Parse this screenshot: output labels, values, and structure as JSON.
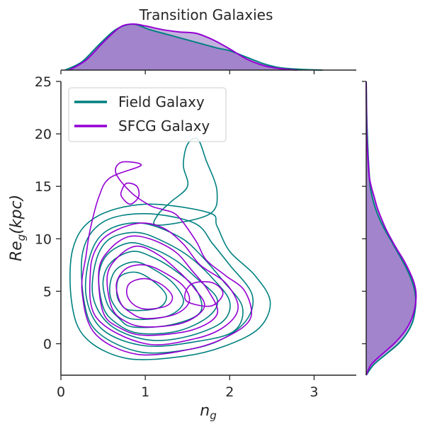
{
  "chart_data": {
    "type": "kde-joint",
    "title": "Transition Galaxies",
    "xlabel": "n",
    "xlabel_sub": "g",
    "ylabel": "Re",
    "ylabel_sub": "g",
    "ylabel_suffix": "(kpc)",
    "xlim": [
      0,
      3.5
    ],
    "ylim": [
      -3,
      25
    ],
    "xticks": [
      0,
      1,
      2,
      3
    ],
    "yticks": [
      0,
      5,
      10,
      15,
      20,
      25
    ],
    "grid": false,
    "legend_position": "upper-left",
    "series": [
      {
        "name": "Field Galaxy",
        "color": "#008080",
        "fill_color": "#7a4fb5",
        "contours": [
          [
            [
              0.78,
              -1.4
            ],
            [
              1.45,
              -1.2
            ],
            [
              1.95,
              -0.2
            ],
            [
              2.35,
              1.5
            ],
            [
              2.48,
              4.0
            ],
            [
              2.3,
              6.5
            ],
            [
              2.0,
              8.8
            ],
            [
              1.85,
              11.2
            ],
            [
              1.75,
              12.5
            ],
            [
              1.0,
              13.3
            ],
            [
              0.4,
              12.0
            ],
            [
              0.14,
              9.0
            ],
            [
              0.13,
              3.8
            ],
            [
              0.3,
              0.5
            ]
          ],
          [
            [
              0.95,
              -0.8
            ],
            [
              1.55,
              -0.5
            ],
            [
              1.95,
              0.6
            ],
            [
              2.22,
              2.5
            ],
            [
              2.26,
              4.8
            ],
            [
              2.0,
              7.5
            ],
            [
              1.8,
              9.5
            ],
            [
              1.58,
              11.5
            ],
            [
              1.0,
              12.4
            ],
            [
              0.5,
              11.6
            ],
            [
              0.26,
              8.8
            ],
            [
              0.28,
              3.8
            ],
            [
              0.45,
              1.0
            ]
          ],
          [
            [
              1.0,
              -0.2
            ],
            [
              1.6,
              0.2
            ],
            [
              2.05,
              1.2
            ],
            [
              2.15,
              3.5
            ],
            [
              1.92,
              6.0
            ],
            [
              1.65,
              8.5
            ],
            [
              1.4,
              10.2
            ],
            [
              0.95,
              11.5
            ],
            [
              0.55,
              10.8
            ],
            [
              0.35,
              8.5
            ],
            [
              0.3,
              4.5
            ],
            [
              0.5,
              1.3
            ]
          ],
          [
            [
              1.0,
              0.4
            ],
            [
              1.45,
              0.6
            ],
            [
              1.9,
              2.0
            ],
            [
              2.0,
              4.0
            ],
            [
              1.8,
              6.2
            ],
            [
              1.52,
              8.3
            ],
            [
              1.2,
              9.8
            ],
            [
              0.9,
              10.6
            ],
            [
              0.58,
              10.0
            ],
            [
              0.42,
              8.0
            ],
            [
              0.38,
              4.5
            ],
            [
              0.58,
              1.8
            ]
          ],
          [
            [
              0.92,
              1.0
            ],
            [
              1.38,
              1.2
            ],
            [
              1.75,
              2.6
            ],
            [
              1.85,
              4.3
            ],
            [
              1.6,
              6.3
            ],
            [
              1.35,
              8.0
            ],
            [
              1.05,
              9.2
            ],
            [
              0.8,
              9.6
            ],
            [
              0.55,
              8.5
            ],
            [
              0.45,
              6.5
            ],
            [
              0.5,
              3.5
            ],
            [
              0.65,
              2.0
            ]
          ],
          [
            [
              0.85,
              1.6
            ],
            [
              1.3,
              1.8
            ],
            [
              1.65,
              3.0
            ],
            [
              1.6,
              5.2
            ],
            [
              1.35,
              7.0
            ],
            [
              1.1,
              8.2
            ],
            [
              0.85,
              8.8
            ],
            [
              0.6,
              7.8
            ],
            [
              0.5,
              6.0
            ],
            [
              0.55,
              3.8
            ],
            [
              0.68,
              2.5
            ]
          ],
          [
            [
              0.82,
              2.4
            ],
            [
              1.25,
              2.6
            ],
            [
              1.45,
              3.9
            ],
            [
              1.35,
              5.6
            ],
            [
              1.12,
              7.0
            ],
            [
              0.88,
              7.8
            ],
            [
              0.66,
              7.1
            ],
            [
              0.58,
              5.5
            ],
            [
              0.62,
              3.8
            ]
          ],
          [
            [
              0.82,
              3.2
            ],
            [
              1.15,
              3.4
            ],
            [
              1.25,
              4.5
            ],
            [
              1.12,
              5.8
            ],
            [
              0.9,
              6.8
            ],
            [
              0.7,
              6.4
            ],
            [
              0.66,
              5.0
            ],
            [
              0.7,
              3.9
            ]
          ],
          [
            [
              1.15,
              11.3
            ],
            [
              1.75,
              12.3
            ],
            [
              1.85,
              14.5
            ],
            [
              1.72,
              17.5
            ],
            [
              1.62,
              19.5
            ],
            [
              1.5,
              19.0
            ],
            [
              1.45,
              17.0
            ],
            [
              1.5,
              15.0
            ],
            [
              1.3,
              13.5
            ],
            [
              1.15,
              12.3
            ]
          ]
        ],
        "x_marginal": [
          [
            0.05,
            0.0
          ],
          [
            0.25,
            0.18
          ],
          [
            0.45,
            0.55
          ],
          [
            0.65,
            0.88
          ],
          [
            0.85,
            1.0
          ],
          [
            1.05,
            0.88
          ],
          [
            1.25,
            0.78
          ],
          [
            1.45,
            0.68
          ],
          [
            1.65,
            0.58
          ],
          [
            1.85,
            0.48
          ],
          [
            2.0,
            0.42
          ],
          [
            2.2,
            0.28
          ],
          [
            2.4,
            0.14
          ],
          [
            2.6,
            0.05
          ],
          [
            2.9,
            0.01
          ],
          [
            3.1,
            0.0
          ]
        ],
        "y_marginal": [
          [
            -3,
            0.0
          ],
          [
            -2,
            0.15
          ],
          [
            -1,
            0.4
          ],
          [
            0,
            0.65
          ],
          [
            1,
            0.82
          ],
          [
            2,
            0.93
          ],
          [
            3,
            0.98
          ],
          [
            4,
            1.0
          ],
          [
            5,
            0.98
          ],
          [
            6,
            0.92
          ],
          [
            7,
            0.83
          ],
          [
            8,
            0.72
          ],
          [
            9,
            0.6
          ],
          [
            10,
            0.48
          ],
          [
            11,
            0.36
          ],
          [
            12,
            0.26
          ],
          [
            13,
            0.18
          ],
          [
            14,
            0.12
          ],
          [
            15,
            0.08
          ],
          [
            17,
            0.05
          ],
          [
            19,
            0.03
          ],
          [
            21,
            0.015
          ],
          [
            23,
            0.005
          ],
          [
            25,
            0.0
          ]
        ]
      },
      {
        "name": "SFCG Galaxy",
        "color": "#9400D3",
        "fill_color": "#7a4fb5",
        "contours": [
          [
            [
              0.9,
              -1.0
            ],
            [
              1.55,
              -0.5
            ],
            [
              2.0,
              0.8
            ],
            [
              2.25,
              2.5
            ],
            [
              2.18,
              5.0
            ],
            [
              1.95,
              6.5
            ],
            [
              1.72,
              8.0
            ],
            [
              1.6,
              9.8
            ],
            [
              1.38,
              12.2
            ],
            [
              1.2,
              12.8
            ],
            [
              1.05,
              13.2
            ],
            [
              0.82,
              14.5
            ],
            [
              0.65,
              16.3
            ],
            [
              0.72,
              17.3
            ],
            [
              0.95,
              17.0
            ],
            [
              0.58,
              15.8
            ],
            [
              0.45,
              14.0
            ],
            [
              0.35,
              11.0
            ],
            [
              0.3,
              8.5
            ],
            [
              0.25,
              5.0
            ],
            [
              0.4,
              1.0
            ]
          ],
          [
            [
              1.0,
              0.0
            ],
            [
              1.6,
              0.5
            ],
            [
              1.95,
              1.7
            ],
            [
              2.1,
              3.5
            ],
            [
              1.95,
              5.8
            ],
            [
              1.65,
              7.5
            ],
            [
              1.45,
              9.5
            ],
            [
              1.22,
              11.0
            ],
            [
              0.95,
              11.5
            ],
            [
              0.65,
              10.8
            ],
            [
              0.45,
              9.5
            ],
            [
              0.35,
              7.0
            ],
            [
              0.42,
              2.5
            ]
          ],
          [
            [
              1.0,
              0.8
            ],
            [
              1.55,
              1.3
            ],
            [
              1.85,
              2.8
            ],
            [
              1.75,
              5.0
            ],
            [
              1.55,
              7.0
            ],
            [
              1.35,
              8.8
            ],
            [
              1.05,
              10.0
            ],
            [
              0.8,
              10.2
            ],
            [
              0.58,
              9.0
            ],
            [
              0.45,
              7.0
            ],
            [
              0.5,
              3.0
            ],
            [
              0.7,
              1.5
            ]
          ],
          [
            [
              1.0,
              1.6
            ],
            [
              1.45,
              2.0
            ],
            [
              1.7,
              3.5
            ],
            [
              1.58,
              5.3
            ],
            [
              1.38,
              7.0
            ],
            [
              1.15,
              8.5
            ],
            [
              0.9,
              9.3
            ],
            [
              0.68,
              8.3
            ],
            [
              0.55,
              6.5
            ],
            [
              0.6,
              3.5
            ],
            [
              0.75,
              2.2
            ]
          ],
          [
            [
              1.0,
              2.4
            ],
            [
              1.35,
              2.8
            ],
            [
              1.52,
              4.0
            ],
            [
              1.45,
              5.5
            ],
            [
              1.22,
              6.8
            ],
            [
              1.0,
              7.5
            ],
            [
              0.78,
              7.2
            ],
            [
              0.66,
              5.8
            ],
            [
              0.7,
              4.0
            ],
            [
              0.82,
              3.0
            ]
          ],
          [
            [
              1.0,
              3.3
            ],
            [
              1.25,
              3.6
            ],
            [
              1.32,
              4.5
            ],
            [
              1.2,
              5.6
            ],
            [
              1.0,
              6.2
            ],
            [
              0.82,
              5.8
            ],
            [
              0.78,
              4.8
            ],
            [
              0.85,
              3.8
            ]
          ],
          [
            [
              0.72,
              14.0
            ],
            [
              0.82,
              13.3
            ],
            [
              0.92,
              14.0
            ],
            [
              0.9,
              15.0
            ],
            [
              0.78,
              15.3
            ],
            [
              0.72,
              14.6
            ]
          ],
          [
            [
              1.5,
              4.0
            ],
            [
              1.78,
              3.6
            ],
            [
              1.92,
              4.8
            ],
            [
              1.8,
              5.8
            ],
            [
              1.58,
              5.8
            ],
            [
              1.48,
              5.0
            ]
          ]
        ],
        "x_marginal": [
          [
            0.1,
            0.0
          ],
          [
            0.3,
            0.22
          ],
          [
            0.5,
            0.6
          ],
          [
            0.7,
            0.93
          ],
          [
            0.85,
            1.0
          ],
          [
            1.0,
            0.96
          ],
          [
            1.2,
            0.88
          ],
          [
            1.4,
            0.83
          ],
          [
            1.6,
            0.8
          ],
          [
            1.8,
            0.66
          ],
          [
            2.0,
            0.46
          ],
          [
            2.2,
            0.24
          ],
          [
            2.4,
            0.1
          ],
          [
            2.6,
            0.03
          ],
          [
            2.8,
            0.0
          ]
        ],
        "y_marginal": [
          [
            -3,
            0.0
          ],
          [
            -2,
            0.1
          ],
          [
            -1,
            0.32
          ],
          [
            0,
            0.56
          ],
          [
            1,
            0.75
          ],
          [
            2,
            0.88
          ],
          [
            3,
            0.96
          ],
          [
            4,
            1.0
          ],
          [
            5,
            1.0
          ],
          [
            6,
            0.95
          ],
          [
            7,
            0.86
          ],
          [
            8,
            0.75
          ],
          [
            9,
            0.62
          ],
          [
            10,
            0.5
          ],
          [
            11,
            0.39
          ],
          [
            12,
            0.3
          ],
          [
            13,
            0.22
          ],
          [
            14,
            0.16
          ],
          [
            15,
            0.1
          ],
          [
            16,
            0.06
          ],
          [
            18,
            0.03
          ],
          [
            20,
            0.01
          ],
          [
            25,
            0.0
          ]
        ]
      }
    ]
  }
}
